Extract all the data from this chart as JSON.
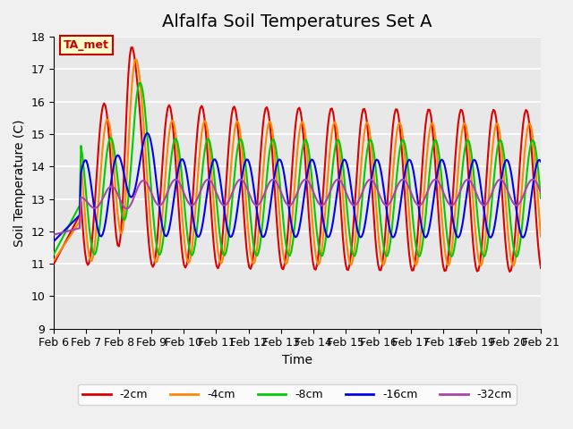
{
  "title": "Alfalfa Soil Temperatures Set A",
  "xlabel": "Time",
  "ylabel": "Soil Temperature (C)",
  "ylim": [
    9.0,
    18.0
  ],
  "yticks": [
    9.0,
    10.0,
    11.0,
    12.0,
    13.0,
    14.0,
    15.0,
    16.0,
    17.0,
    18.0
  ],
  "x_labels": [
    "Feb 6",
    "Feb 7",
    "Feb 8",
    "Feb 9",
    "Feb 10",
    "Feb 11",
    "Feb 12",
    "Feb 13",
    "Feb 14",
    "Feb 15",
    "Feb 16",
    "Feb 17",
    "Feb 18",
    "Feb 19",
    "Feb 20",
    "Feb 21"
  ],
  "annotation_text": "TA_met",
  "annotation_color": "#cc0000",
  "annotation_bg": "#ffffcc",
  "colors": {
    "-2cm": "#dd0000",
    "-4cm": "#ff8800",
    "-8cm": "#00cc00",
    "-16cm": "#0000ee",
    "-32cm": "#aa44aa"
  },
  "legend_labels": [
    "-2cm",
    "-4cm",
    "-8cm",
    "-16cm",
    "-32cm"
  ],
  "background_color": "#e8e8e8",
  "grid_color": "#ffffff",
  "title_fontsize": 14,
  "label_fontsize": 10,
  "tick_fontsize": 9
}
